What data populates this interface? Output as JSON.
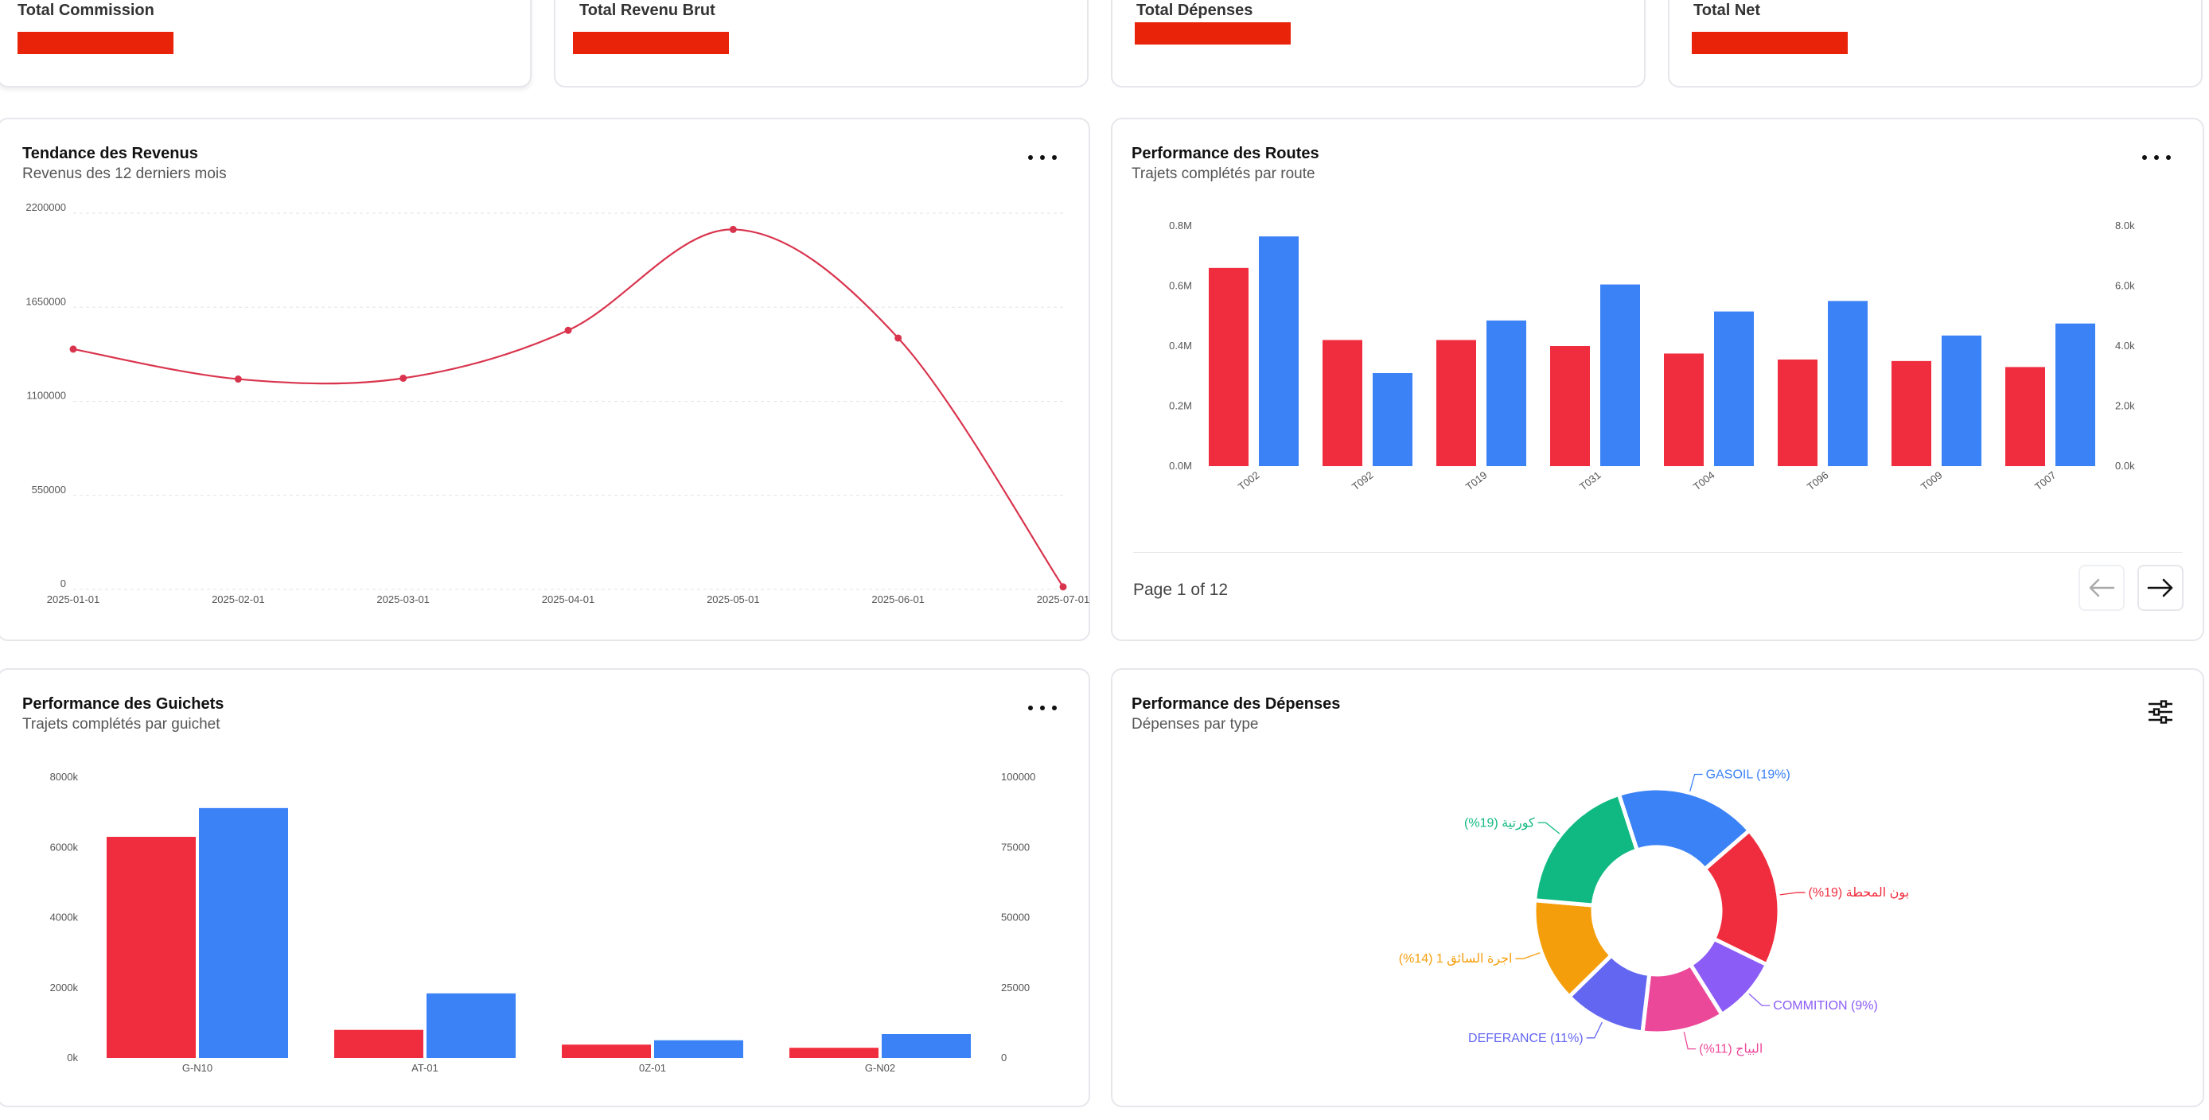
{
  "stats": [
    {
      "label": "Total Commission",
      "value": "[redacted]"
    },
    {
      "label": "Total Revenu Brut",
      "value": "[redacted]"
    },
    {
      "label": "Total Dépenses",
      "value": "[redacted]"
    },
    {
      "label": "Total Net",
      "value": "[redacted]"
    }
  ],
  "colors": {
    "red": "#f02d3e",
    "blue": "#3b82f6",
    "redacted": "#e8230a",
    "line": "#d9344d"
  },
  "revenue": {
    "title": "Tendance des Revenus",
    "subtitle": "Revenus des 12 derniers mois",
    "menu_icon": "more-horizontal-icon"
  },
  "routes": {
    "title": "Performance des Routes",
    "subtitle": "Trajets complétés par route",
    "menu_icon": "more-horizontal-icon",
    "page_label": "Page 1 of 12",
    "prev_icon": "arrow-left-icon",
    "next_icon": "arrow-right-icon"
  },
  "guichets": {
    "title": "Performance des Guichets",
    "subtitle": "Trajets complétés par guichet",
    "menu_icon": "more-horizontal-icon"
  },
  "depenses": {
    "title": "Performance des Dépenses",
    "subtitle": "Dépenses par type",
    "filter_icon": "sliders-icon"
  },
  "chart_data": [
    {
      "id": "revenue",
      "type": "line",
      "x": [
        "2025-01-01",
        "2025-02-01",
        "2025-03-01",
        "2025-04-01",
        "2025-05-01",
        "2025-06-01",
        "2025-07-01"
      ],
      "y": [
        1405000,
        1230000,
        1235000,
        1515000,
        2105000,
        1470000,
        15000
      ],
      "yticks": [
        "2200000",
        "1650000",
        "1100000",
        "550000",
        "0"
      ],
      "ylim": [
        0,
        2200000
      ],
      "grid": true,
      "smooth": true
    },
    {
      "id": "routes",
      "type": "bar",
      "categories": [
        "T002",
        "T092",
        "T019",
        "T031",
        "T004",
        "T096",
        "T009",
        "T007"
      ],
      "series": [
        {
          "axis": "left",
          "values": [
            0.66,
            0.42,
            0.42,
            0.4,
            0.375,
            0.355,
            0.35,
            0.33
          ]
        },
        {
          "axis": "right",
          "values": [
            7.65,
            3.1,
            4.85,
            6.05,
            5.15,
            5.5,
            4.35,
            4.75
          ]
        }
      ],
      "left_ticks": [
        "0.8M",
        "0.6M",
        "0.4M",
        "0.2M",
        "0.0M"
      ],
      "right_ticks": [
        "8.0k",
        "6.0k",
        "4.0k",
        "2.0k",
        "0.0k"
      ],
      "left_lim": [
        0,
        0.8
      ],
      "right_lim": [
        0,
        8
      ]
    },
    {
      "id": "guichets",
      "type": "bar",
      "categories": [
        "G-N10",
        "AT-01",
        "0Z-01",
        "G-N02"
      ],
      "series": [
        {
          "axis": "left",
          "values": [
            6300,
            800,
            380,
            290
          ]
        },
        {
          "axis": "right",
          "values": [
            89000,
            23000,
            6300,
            8500
          ]
        }
      ],
      "left_ticks": [
        "8000k",
        "6000k",
        "4000k",
        "2000k",
        "0k"
      ],
      "right_ticks": [
        "100000",
        "75000",
        "50000",
        "25000",
        "0"
      ],
      "left_lim": [
        0,
        8000
      ],
      "right_lim": [
        0,
        100000
      ]
    },
    {
      "id": "depenses",
      "type": "pie",
      "donut": true,
      "slices": [
        {
          "label": "GASOIL (19%)",
          "value": 19,
          "color": "#3b82f6"
        },
        {
          "label": "بون المحطة (19%)",
          "value": 19,
          "color": "#f02d3e"
        },
        {
          "label": "COMMITION (9%)",
          "value": 9,
          "color": "#8b5cf6"
        },
        {
          "label": "البياج (11%)",
          "value": 11,
          "color": "#ec4899"
        },
        {
          "label": "DEFERANCE (11%)",
          "value": 11,
          "color": "#6366f1"
        },
        {
          "label": "اجرة السائق 1 (14%)",
          "value": 14,
          "color": "#f59e0b"
        },
        {
          "label": "كورتية (19%)",
          "value": 19,
          "color": "#10b981"
        }
      ]
    }
  ]
}
